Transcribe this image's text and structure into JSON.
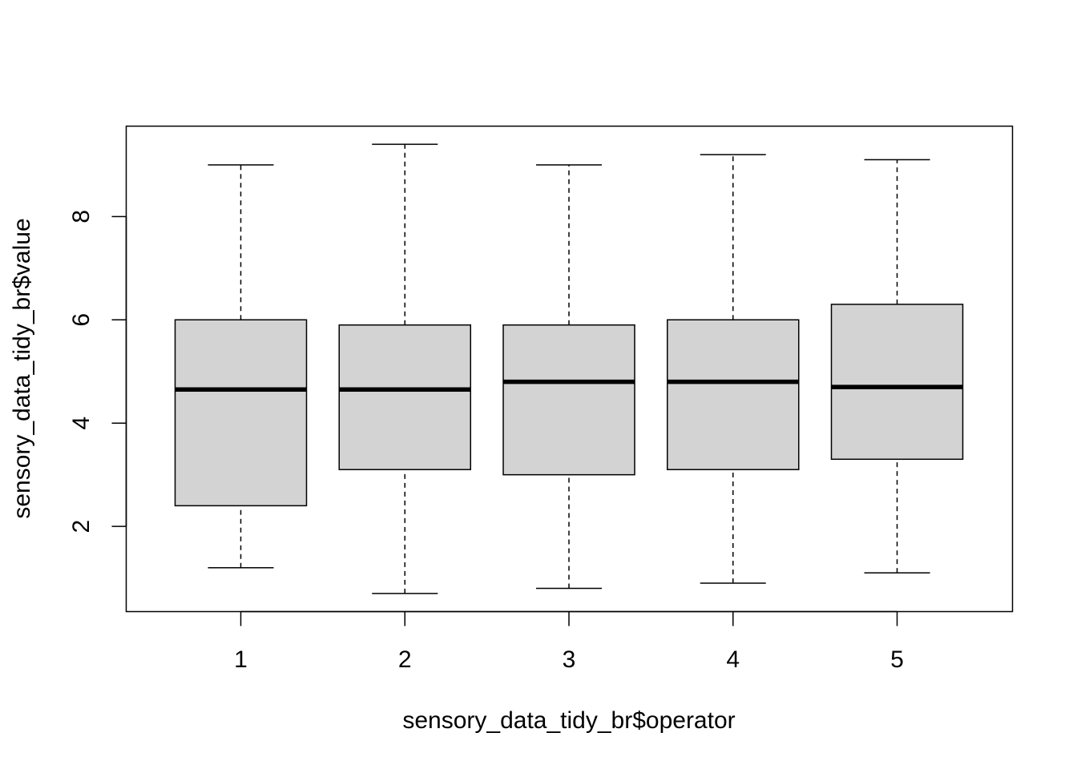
{
  "chart_data": {
    "type": "boxplot",
    "xlabel": "sensory_data_tidy_br$operator",
    "ylabel": "sensory_data_tidy_br$value",
    "categories": [
      "1",
      "2",
      "3",
      "4",
      "5"
    ],
    "boxes": [
      {
        "category": "1",
        "min": 1.2,
        "q1": 2.4,
        "median": 4.65,
        "q3": 6.0,
        "max": 9.0
      },
      {
        "category": "2",
        "min": 0.7,
        "q1": 3.1,
        "median": 4.65,
        "q3": 5.9,
        "max": 9.4
      },
      {
        "category": "3",
        "min": 0.8,
        "q1": 3.0,
        "median": 4.8,
        "q3": 5.9,
        "max": 9.0
      },
      {
        "category": "4",
        "min": 0.9,
        "q1": 3.1,
        "median": 4.8,
        "q3": 6.0,
        "max": 9.2
      },
      {
        "category": "5",
        "min": 1.1,
        "q1": 3.3,
        "median": 4.7,
        "q3": 6.3,
        "max": 9.1
      }
    ],
    "y_ticks": [
      2,
      4,
      6,
      8
    ],
    "ylim": [
      0.35,
      9.75
    ],
    "grid": false,
    "box_fill": "#d3d3d3",
    "line_color": "#000000"
  }
}
